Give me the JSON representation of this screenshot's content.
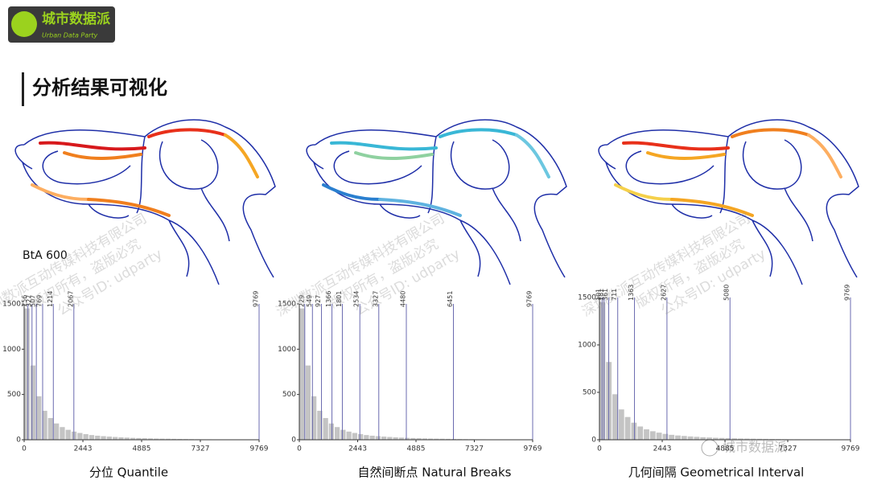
{
  "header": {
    "logo_title": "城市数据派",
    "logo_subtitle": "Urban Data Party",
    "title": "分析结果可视化"
  },
  "map_label": "BtA 600",
  "watermark": [
    "深圳数派互动传媒科技有限公司",
    "版权所有，盗版必究",
    "公众号ID: udparty"
  ],
  "badge": "城市数据派",
  "histogram": {
    "type": "histogram",
    "bins": [
      0,
      244.225,
      488.45,
      732.675,
      976.9,
      1221.125,
      1465.35,
      1709.575,
      1953.8,
      2198.025,
      2442.25,
      2686.475,
      2930.7,
      3174.925,
      3419.15,
      3663.375,
      3907.6,
      4151.825,
      4396.05,
      4640.275,
      4884.5,
      5128.725,
      5372.95,
      5617.175,
      5861.4,
      6105.625,
      6349.85,
      6594.075,
      6838.3,
      7082.525,
      7326.75,
      7570.975,
      7815.2,
      8059.425,
      8303.65,
      8547.875,
      8792.1,
      9036.325,
      9280.55,
      9524.775,
      9769
    ],
    "values": [
      1450,
      820,
      480,
      320,
      240,
      180,
      140,
      110,
      90,
      75,
      62,
      52,
      45,
      40,
      35,
      31,
      27,
      24,
      21,
      19,
      17,
      15,
      13,
      12,
      11,
      10,
      9,
      8,
      7,
      6,
      5,
      5,
      4,
      4,
      3,
      3,
      2,
      2,
      2,
      1
    ],
    "color": "#c4c4c4",
    "xlim": [
      0,
      9769
    ],
    "ylim": [
      0,
      1500
    ],
    "xticks": [
      0,
      2443,
      4885,
      7327,
      9769
    ],
    "yticks": [
      0,
      500,
      1000,
      1500
    ]
  },
  "panels": [
    {
      "caption": "分位 Quantile",
      "breaks": [
        156,
        327,
        507,
        769,
        1214,
        2067,
        9769
      ],
      "break_color": "#6b6bb0"
    },
    {
      "caption": "自然间断点 Natural Breaks",
      "breaks": [
        229,
        549,
        927,
        1366,
        1801,
        2534,
        3327,
        4480,
        6451,
        9769
      ],
      "break_color": "#6b6bb0"
    },
    {
      "caption": "几何间隔 Geometrical Interval",
      "breaks": [
        101,
        181,
        361,
        711,
        1363,
        2627,
        5080,
        9769
      ],
      "break_color": "#6b6bb0"
    }
  ]
}
